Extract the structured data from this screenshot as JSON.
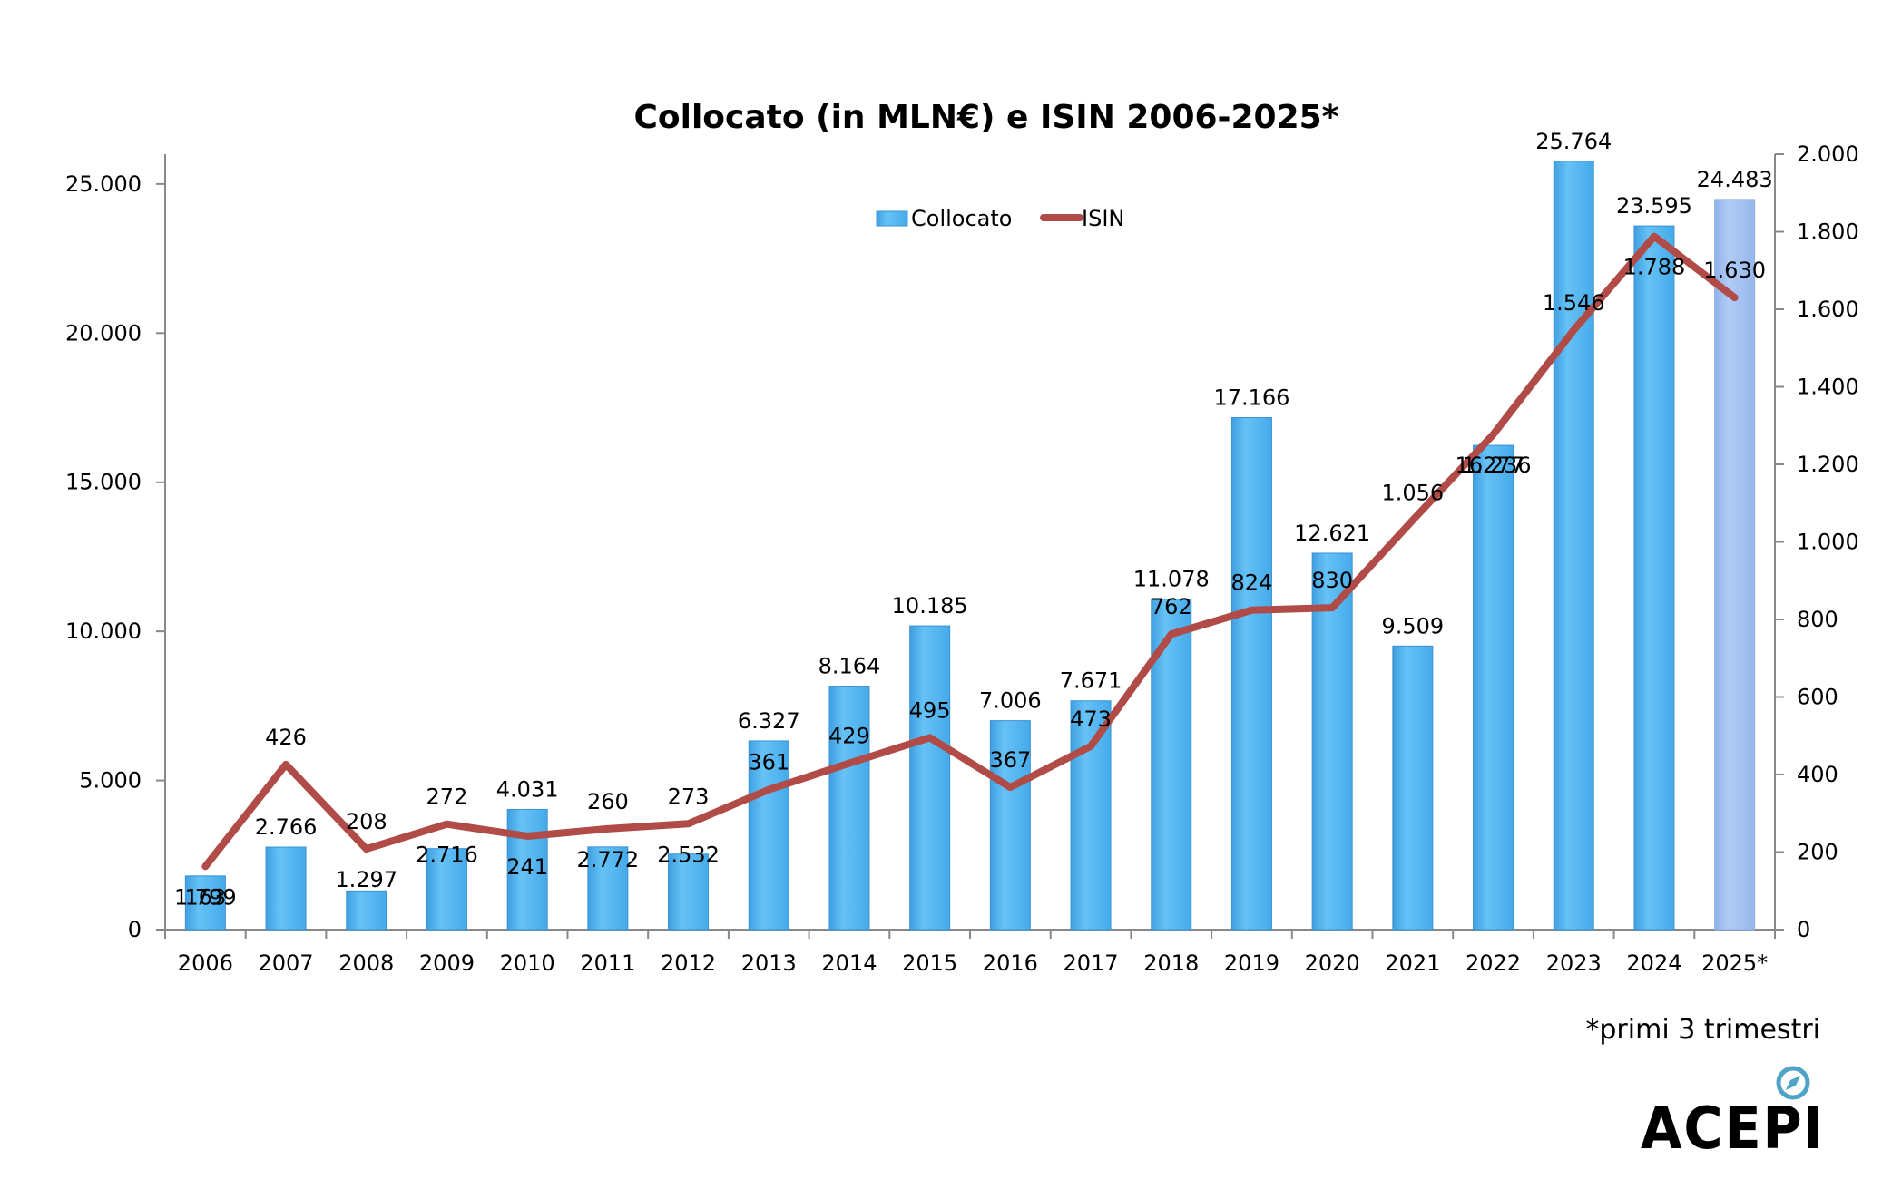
{
  "chart_data": {
    "type": "bar+line",
    "title": "Collocato (in MLN€) e ISIN 2006-2025*",
    "categories": [
      "2006",
      "2007",
      "2008",
      "2009",
      "2010",
      "2011",
      "2012",
      "2013",
      "2014",
      "2015",
      "2016",
      "2017",
      "2018",
      "2019",
      "2020",
      "2021",
      "2022",
      "2023",
      "2024",
      "2025*"
    ],
    "series": [
      {
        "name": "Collocato",
        "type": "bar",
        "axis": "left",
        "color": "#54b6f2",
        "highlight_last_color": "#a1bff0",
        "values": [
          1799,
          2766,
          1297,
          2716,
          4031,
          2772,
          2532,
          6327,
          8164,
          10185,
          7006,
          7671,
          11078,
          17166,
          12621,
          9509,
          16236,
          25764,
          23595,
          24483
        ],
        "labels": [
          "1.799",
          "2.766",
          "1.297",
          "2.716",
          "4.031",
          "2.772",
          "2.532",
          "6.327",
          "8.164",
          "10.185",
          "7.006",
          "7.671",
          "11.078",
          "17.166",
          "12.621",
          "9.509",
          "16.236",
          "25.764",
          "23.595",
          "24.483"
        ]
      },
      {
        "name": "ISIN",
        "type": "line",
        "axis": "right",
        "color": "#b04b47",
        "values": [
          163,
          426,
          208,
          272,
          241,
          260,
          273,
          361,
          429,
          495,
          367,
          473,
          762,
          824,
          830,
          1056,
          1277,
          1546,
          1788,
          1630
        ],
        "labels": [
          "163",
          "426",
          "208",
          "272",
          "241",
          "260",
          "273",
          "361",
          "429",
          "495",
          "367",
          "473",
          "762",
          "824",
          "830",
          "1.056",
          "1.277",
          "1.546",
          "1.788",
          "1.630"
        ]
      }
    ],
    "y_left": {
      "min": 0,
      "max": 26000,
      "ticks": [
        0,
        5000,
        10000,
        15000,
        20000,
        25000
      ],
      "tick_labels": [
        "0",
        "5.000",
        "10.000",
        "15.000",
        "20.000",
        "25.000"
      ]
    },
    "y_right": {
      "min": 0,
      "max": 2000,
      "ticks": [
        0,
        200,
        400,
        600,
        800,
        1000,
        1200,
        1400,
        1600,
        1800,
        2000
      ],
      "tick_labels": [
        "0",
        "200",
        "400",
        "600",
        "800",
        "1.000",
        "1.200",
        "1.400",
        "1.600",
        "1.800",
        "2.000"
      ]
    },
    "grid": false,
    "legend": {
      "placement": "top-center",
      "items": [
        "Collocato",
        "ISIN"
      ]
    }
  },
  "footnote": "*primi 3 trimestri",
  "logo": {
    "text": "ACEPI",
    "icon": "compass-icon",
    "color": "#4fa3c7"
  }
}
